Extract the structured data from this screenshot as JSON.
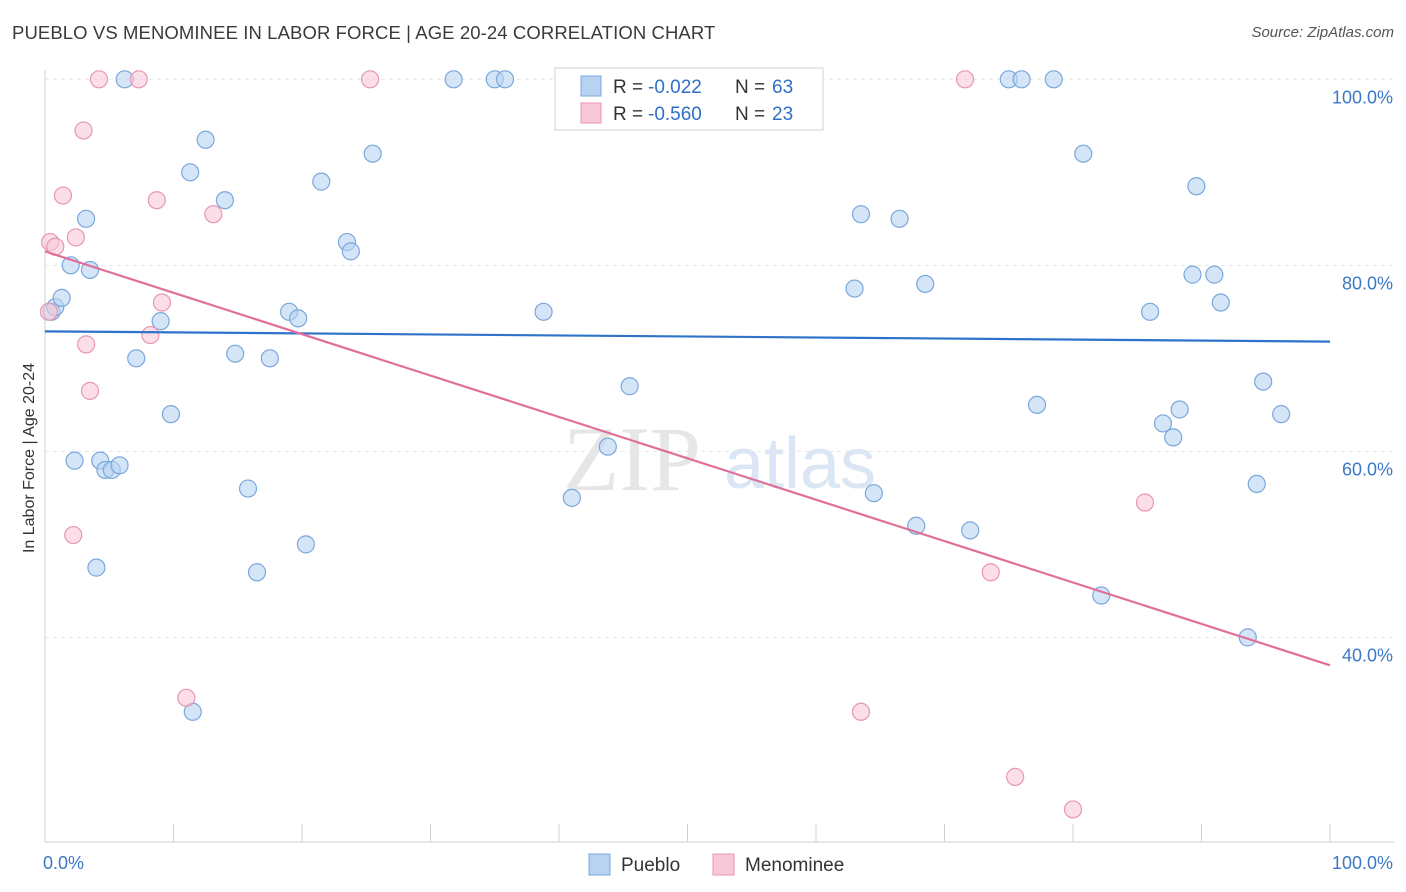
{
  "title": "PUEBLO VS MENOMINEE IN LABOR FORCE | AGE 20-24 CORRELATION CHART",
  "source": "Source: ZipAtlas.com",
  "watermark": {
    "zip": "ZIP",
    "atlas": "atlas"
  },
  "legend": {
    "r_label": "R =",
    "n_label": "N =",
    "rows": [
      {
        "series": "Pueblo",
        "r": "-0.022",
        "n": "63"
      },
      {
        "series": "Menominee",
        "r": "-0.560",
        "n": "23"
      }
    ]
  },
  "colors": {
    "pueblo_fill": "#b8d3f2",
    "pueblo_stroke": "#7aa7dc",
    "pueblo_line": "#2f72c9",
    "menominee_fill": "#f8c8d8",
    "menominee_stroke": "#e896b2",
    "menominee_line": "#e0709a",
    "tick_text": "#3b78c8"
  },
  "chart_data": {
    "type": "scatter",
    "title": "PUEBLO VS MENOMINEE IN LABOR FORCE | AGE 20-24 CORRELATION CHART",
    "xlabel": "",
    "ylabel": "In Labor Force | Age 20-24",
    "xlim": [
      0,
      100
    ],
    "ylim": [
      18,
      101
    ],
    "x_tick_labels": [
      "0.0%",
      "100.0%"
    ],
    "y_ticks": [
      40,
      60,
      80,
      100
    ],
    "y_tick_labels": [
      "40.0%",
      "60.0%",
      "80.0%",
      "100.0%"
    ],
    "grid": true,
    "legend_position": "top-center",
    "series": [
      {
        "name": "Pueblo",
        "points": [
          [
            0.5,
            75
          ],
          [
            0.8,
            75.5
          ],
          [
            1.3,
            76.5
          ],
          [
            2.0,
            80
          ],
          [
            3.5,
            79.5
          ],
          [
            3.2,
            85
          ],
          [
            6.2,
            100
          ],
          [
            12.5,
            93.5
          ],
          [
            11.3,
            90
          ],
          [
            14.0,
            87
          ],
          [
            21.5,
            89
          ],
          [
            25.5,
            92
          ],
          [
            23.5,
            82.5
          ],
          [
            23.8,
            81.5
          ],
          [
            19.0,
            75
          ],
          [
            19.7,
            74.3
          ],
          [
            9.0,
            74
          ],
          [
            7.1,
            70
          ],
          [
            14.8,
            70.5
          ],
          [
            17.5,
            70
          ],
          [
            9.8,
            64
          ],
          [
            2.3,
            59
          ],
          [
            4.3,
            59
          ],
          [
            4.7,
            58
          ],
          [
            5.2,
            58
          ],
          [
            5.8,
            58.5
          ],
          [
            15.8,
            56
          ],
          [
            4.0,
            47.5
          ],
          [
            16.5,
            47
          ],
          [
            20.3,
            50
          ],
          [
            11.5,
            32
          ],
          [
            31.8,
            100
          ],
          [
            35.0,
            100
          ],
          [
            35.8,
            100
          ],
          [
            38.8,
            75
          ],
          [
            45.5,
            67
          ],
          [
            43.8,
            60.5
          ],
          [
            41.0,
            55
          ],
          [
            63.0,
            77.5
          ],
          [
            63.5,
            85.5
          ],
          [
            66.5,
            85
          ],
          [
            64.5,
            55.5
          ],
          [
            68.5,
            78
          ],
          [
            67.8,
            52
          ],
          [
            75.0,
            100
          ],
          [
            76.0,
            100
          ],
          [
            78.5,
            100
          ],
          [
            80.8,
            92
          ],
          [
            77.2,
            65
          ],
          [
            72.0,
            51.5
          ],
          [
            82.2,
            44.5
          ],
          [
            86.0,
            75
          ],
          [
            87.0,
            63
          ],
          [
            87.8,
            61.5
          ],
          [
            88.3,
            64.5
          ],
          [
            89.3,
            79
          ],
          [
            89.6,
            88.5
          ],
          [
            91.0,
            79
          ],
          [
            91.5,
            76
          ],
          [
            94.8,
            67.5
          ],
          [
            94.3,
            56.5
          ],
          [
            96.2,
            64
          ],
          [
            93.6,
            40
          ]
        ]
      },
      {
        "name": "Menominee",
        "points": [
          [
            0.4,
            82.5
          ],
          [
            0.8,
            82
          ],
          [
            2.4,
            83
          ],
          [
            1.4,
            87.5
          ],
          [
            3.0,
            94.5
          ],
          [
            4.2,
            100
          ],
          [
            7.3,
            100
          ],
          [
            8.7,
            87
          ],
          [
            13.1,
            85.5
          ],
          [
            25.3,
            100
          ],
          [
            71.6,
            100
          ],
          [
            9.1,
            76
          ],
          [
            8.2,
            72.5
          ],
          [
            3.2,
            71.5
          ],
          [
            3.5,
            66.5
          ],
          [
            2.2,
            51
          ],
          [
            11.0,
            33.5
          ],
          [
            63.5,
            32
          ],
          [
            73.6,
            47
          ],
          [
            85.6,
            54.5
          ],
          [
            75.5,
            25
          ],
          [
            80.0,
            21.5
          ],
          [
            0.3,
            75
          ]
        ]
      }
    ],
    "trend_lines": [
      {
        "series": "Pueblo",
        "x": [
          0,
          100
        ],
        "y": [
          72.9,
          71.8
        ]
      },
      {
        "series": "Menominee",
        "x": [
          0,
          100
        ],
        "y": [
          81.5,
          37
        ]
      }
    ]
  }
}
